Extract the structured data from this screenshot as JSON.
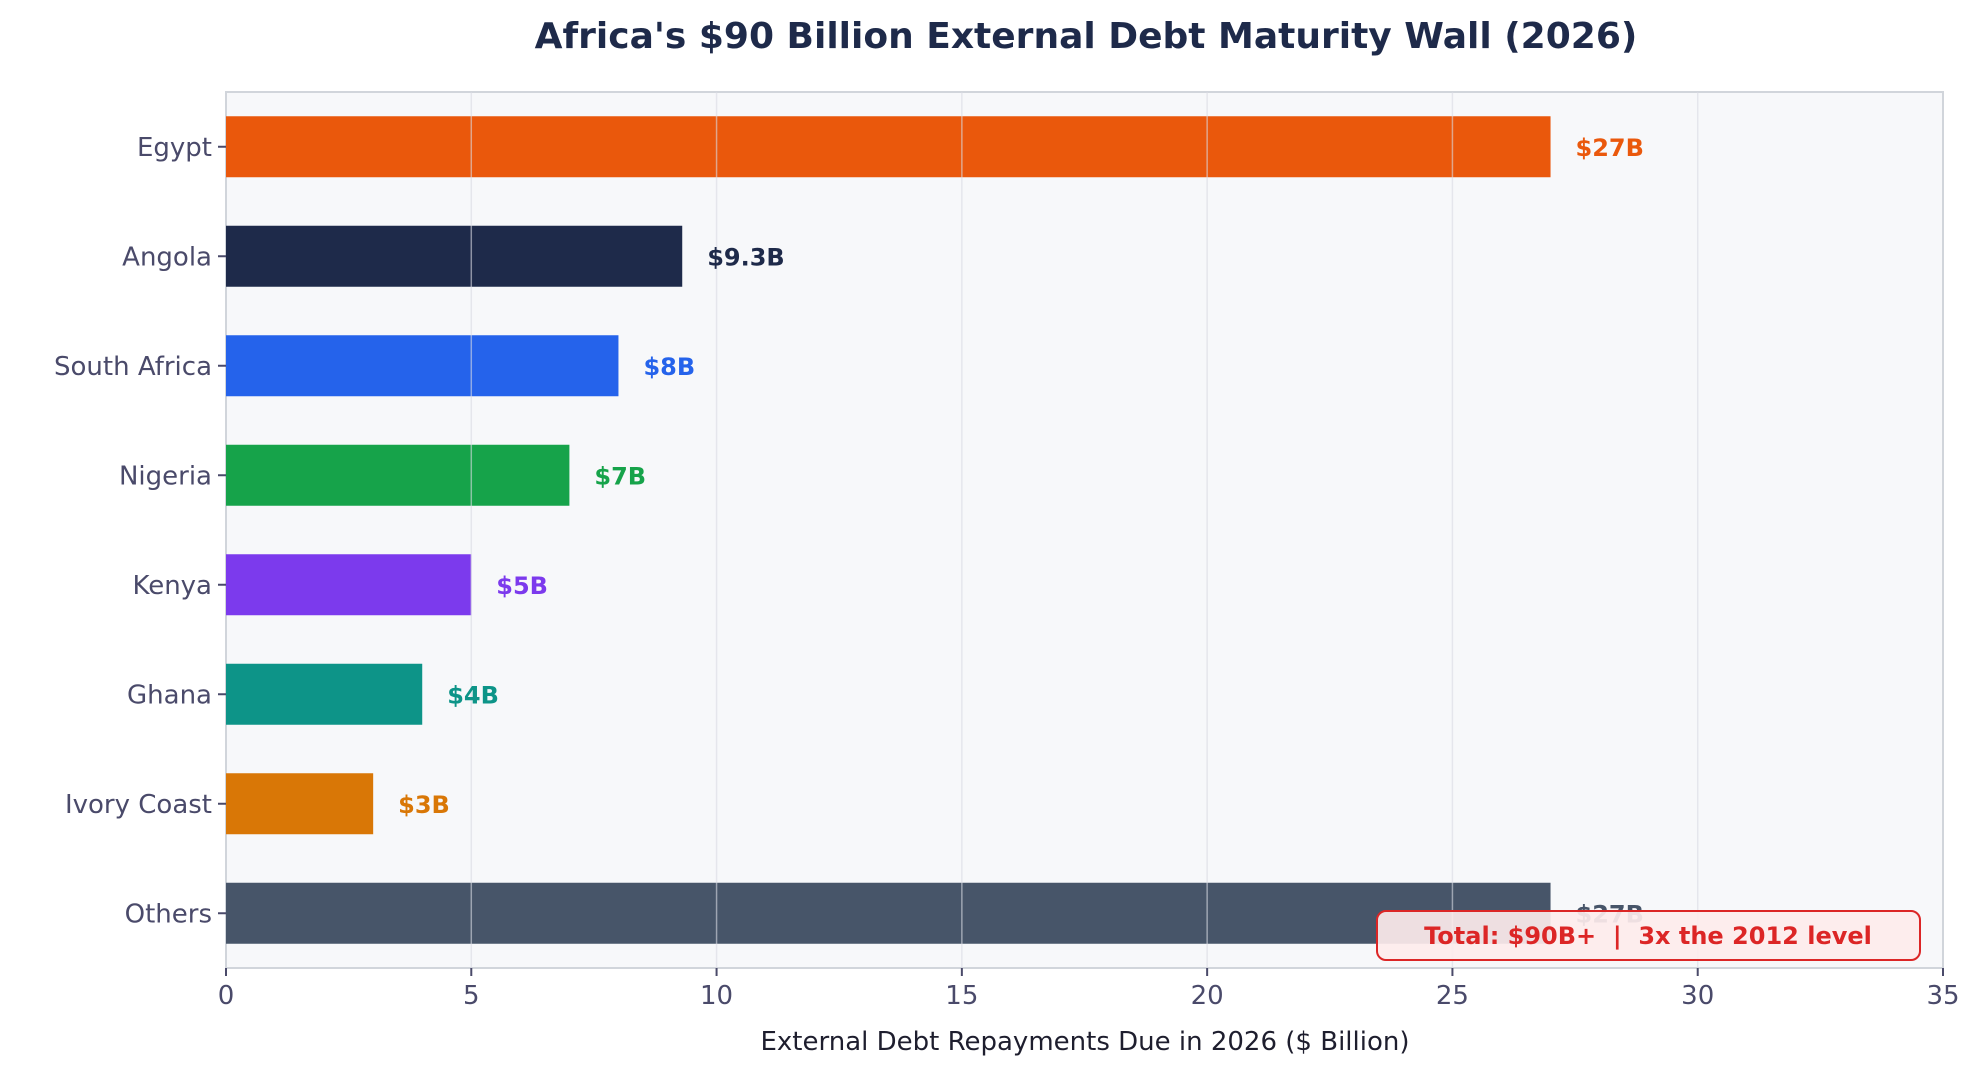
{
  "chart_data": {
    "type": "bar",
    "orientation": "horizontal",
    "title": "Africa's $90 Billion External Debt Maturity Wall (2026)",
    "xlabel": "External Debt Repayments Due in 2026 ($ Billion)",
    "ylabel": "",
    "xlim": [
      0,
      35
    ],
    "xticks": [
      0,
      5,
      10,
      15,
      20,
      25,
      30,
      35
    ],
    "grid": "x",
    "categories": [
      "Egypt",
      "Angola",
      "South Africa",
      "Nigeria",
      "Kenya",
      "Ghana",
      "Ivory Coast",
      "Others"
    ],
    "values": [
      27,
      9.3,
      8,
      7,
      5,
      4,
      3,
      27
    ],
    "data_labels": [
      "$27B",
      "$9.3B",
      "$8B",
      "$7B",
      "$5B",
      "$4B",
      "$3B",
      "$27B"
    ],
    "colors": [
      "#ea580c",
      "#1e2a4a",
      "#2563eb",
      "#16a34a",
      "#7c3aed",
      "#0d9488",
      "#d97706",
      "#475569"
    ],
    "annotation": "Total: $90B+  |  3x the 2012 level",
    "annotation_color": "#dc2626"
  }
}
